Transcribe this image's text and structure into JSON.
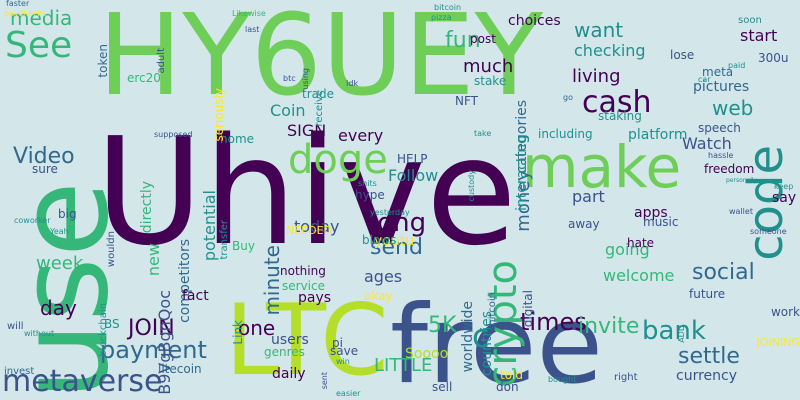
{
  "palette": {
    "background": "#d3e7ea",
    "dark_purple": "#440154",
    "indigo": "#3b528b",
    "blue": "#31688e",
    "teal": "#21908d",
    "sea_green": "#35b779",
    "green": "#6ece58",
    "lime": "#b5de2b",
    "yellow": "#fde725"
  },
  "words": [
    {
      "text": "Uhive",
      "color": "dark_purple",
      "rotate": 0
    },
    {
      "text": "HY6UEY",
      "color": "green",
      "rotate": 0
    },
    {
      "text": "use",
      "color": "sea_green",
      "rotate": -90
    },
    {
      "text": "free",
      "color": "indigo",
      "rotate": 0
    },
    {
      "text": "make",
      "color": "green",
      "rotate": 0
    },
    {
      "text": "LTC",
      "color": "lime",
      "rotate": 0
    },
    {
      "text": "code",
      "color": "teal",
      "rotate": -90
    },
    {
      "text": "metaverse",
      "color": "indigo",
      "rotate": 0
    },
    {
      "text": "doge",
      "color": "green",
      "rotate": 0
    },
    {
      "text": "crypto",
      "color": "sea_green",
      "rotate": -90
    },
    {
      "text": "See",
      "color": "sea_green",
      "rotate": 0
    },
    {
      "text": "cash",
      "color": "dark_purple",
      "rotate": 0
    },
    {
      "text": "payment",
      "color": "blue",
      "rotate": 0
    },
    {
      "text": "bank",
      "color": "teal",
      "rotate": 0
    },
    {
      "text": "Video",
      "color": "blue",
      "rotate": 0
    },
    {
      "text": "long",
      "color": "dark_purple",
      "rotate": 0
    },
    {
      "text": "send",
      "color": "blue",
      "rotate": 0
    },
    {
      "text": "social",
      "color": "blue",
      "rotate": 0
    },
    {
      "text": "JOIN",
      "color": "dark_purple",
      "rotate": 0
    },
    {
      "text": "times",
      "color": "dark_purple",
      "rotate": 0
    },
    {
      "text": "invite",
      "color": "sea_green",
      "rotate": 0
    },
    {
      "text": "settle",
      "color": "blue",
      "rotate": 0
    },
    {
      "text": "5K",
      "color": "sea_green",
      "rotate": 0
    },
    {
      "text": "LITTLE",
      "color": "sea_green",
      "rotate": 0
    },
    {
      "text": "fun",
      "color": "sea_green",
      "rotate": 0
    },
    {
      "text": "want",
      "color": "teal",
      "rotate": 0
    },
    {
      "text": "media",
      "color": "sea_green",
      "rotate": 0
    },
    {
      "text": "web",
      "color": "teal",
      "rotate": 0
    },
    {
      "text": "money",
      "color": "blue",
      "rotate": -90
    },
    {
      "text": "minute",
      "color": "blue",
      "rotate": -90
    },
    {
      "text": "one",
      "color": "dark_purple",
      "rotate": 0
    },
    {
      "text": "day",
      "color": "dark_purple",
      "rotate": 0
    },
    {
      "text": "week",
      "color": "sea_green",
      "rotate": 0
    },
    {
      "text": "new",
      "color": "sea_green",
      "rotate": -90
    },
    {
      "text": "potential",
      "color": "teal",
      "rotate": -90
    },
    {
      "text": "B9VgBgnQoc",
      "color": "indigo",
      "rotate": -90
    },
    {
      "text": "directly",
      "color": "sea_green",
      "rotate": -90
    },
    {
      "text": "competitors",
      "color": "blue",
      "rotate": -90
    },
    {
      "text": "categories",
      "color": "blue",
      "rotate": -90
    },
    {
      "text": "countries",
      "color": "teal",
      "rotate": -90
    },
    {
      "text": "worldwide",
      "color": "blue",
      "rotate": -90
    },
    {
      "text": "living",
      "color": "dark_purple",
      "rotate": 0
    },
    {
      "text": "much",
      "color": "dark_purple",
      "rotate": 0
    },
    {
      "text": "choices",
      "color": "dark_purple",
      "rotate": 0
    },
    {
      "text": "post",
      "color": "dark_purple",
      "rotate": 0
    },
    {
      "text": "start",
      "color": "dark_purple",
      "rotate": 0
    },
    {
      "text": "checking",
      "color": "teal",
      "rotate": 0
    },
    {
      "text": "Coin",
      "color": "teal",
      "rotate": 0
    },
    {
      "text": "SIGN",
      "color": "dark_purple",
      "rotate": 0
    },
    {
      "text": "every",
      "color": "dark_purple",
      "rotate": 0
    },
    {
      "text": "Follow",
      "color": "teal",
      "rotate": 0
    },
    {
      "text": "part",
      "color": "indigo",
      "rotate": 0
    },
    {
      "text": "Watch",
      "color": "indigo",
      "rotate": 0
    },
    {
      "text": "apps",
      "color": "dark_purple",
      "rotate": 0
    },
    {
      "text": "pictures",
      "color": "blue",
      "rotate": 0
    },
    {
      "text": "meta",
      "color": "blue",
      "rotate": 0
    },
    {
      "text": "300u",
      "color": "indigo",
      "rotate": 0
    },
    {
      "text": "interacting",
      "color": "teal",
      "rotate": -90
    },
    {
      "text": "platform",
      "color": "teal",
      "rotate": 0
    },
    {
      "text": "including",
      "color": "teal",
      "rotate": 0
    },
    {
      "text": "staking",
      "color": "teal",
      "rotate": 0
    },
    {
      "text": "NFT",
      "color": "indigo",
      "rotate": 0
    },
    {
      "text": "stake",
      "color": "teal",
      "rotate": 0
    },
    {
      "text": "trade",
      "color": "teal",
      "rotate": 0
    },
    {
      "text": "speech",
      "color": "indigo",
      "rotate": 0
    },
    {
      "text": "freedom",
      "color": "dark_purple",
      "rotate": 0
    },
    {
      "text": "say",
      "color": "dark_purple",
      "rotate": 0
    },
    {
      "text": "today",
      "color": "indigo",
      "rotate": 0
    },
    {
      "text": "youtu",
      "color": "yellow",
      "rotate": 0
    },
    {
      "text": "ages",
      "color": "indigo",
      "rotate": 0
    },
    {
      "text": "going",
      "color": "sea_green",
      "rotate": 0
    },
    {
      "text": "welcome",
      "color": "sea_green",
      "rotate": 0
    },
    {
      "text": "music",
      "color": "indigo",
      "rotate": 0
    },
    {
      "text": "hate",
      "color": "dark_purple",
      "rotate": 0
    },
    {
      "text": "future",
      "color": "indigo",
      "rotate": 0
    },
    {
      "text": "work",
      "color": "indigo",
      "rotate": 0
    },
    {
      "text": "daily",
      "color": "dark_purple",
      "rotate": 0
    },
    {
      "text": "users",
      "color": "indigo",
      "rotate": 0
    },
    {
      "text": "genres",
      "color": "sea_green",
      "rotate": 0
    },
    {
      "text": "pays",
      "color": "dark_purple",
      "rotate": 0
    },
    {
      "text": "Soooo",
      "color": "lime",
      "rotate": 0
    },
    {
      "text": "fact",
      "color": "dark_purple",
      "rotate": 0
    },
    {
      "text": "nothing",
      "color": "dark_purple",
      "rotate": 0
    },
    {
      "text": "service",
      "color": "sea_green",
      "rotate": 0
    },
    {
      "text": "NEEDED",
      "color": "yellow",
      "rotate": 0
    },
    {
      "text": "blows",
      "color": "teal",
      "rotate": 0
    },
    {
      "text": "away",
      "color": "indigo",
      "rotate": 0
    },
    {
      "text": "hype",
      "color": "indigo",
      "rotate": 0
    },
    {
      "text": "HELP",
      "color": "indigo",
      "rotate": 0
    },
    {
      "text": "home",
      "color": "teal",
      "rotate": 0
    },
    {
      "text": "sure",
      "color": "indigo",
      "rotate": 0
    },
    {
      "text": "big",
      "color": "indigo",
      "rotate": 0
    },
    {
      "text": "Buy",
      "color": "sea_green",
      "rotate": 0
    },
    {
      "text": "pi",
      "color": "indigo",
      "rotate": 0
    },
    {
      "text": "save",
      "color": "indigo",
      "rotate": 0
    },
    {
      "text": "okay",
      "color": "yellow",
      "rotate": 0
    },
    {
      "text": "currency",
      "color": "indigo",
      "rotate": 0
    },
    {
      "text": "JOINING",
      "color": "yellow",
      "rotate": 0
    },
    {
      "text": "BS",
      "color": "teal",
      "rotate": 0
    },
    {
      "text": "litecoin",
      "color": "blue",
      "rotate": 0
    },
    {
      "text": "sell",
      "color": "indigo",
      "rotate": 0
    },
    {
      "text": "don",
      "color": "indigo",
      "rotate": 0
    },
    {
      "text": "told",
      "color": "yellow",
      "rotate": 0
    },
    {
      "text": "invest",
      "color": "blue",
      "rotate": 0
    },
    {
      "text": "will",
      "color": "indigo",
      "rotate": 0
    },
    {
      "text": "without",
      "color": "teal",
      "rotate": 0
    },
    {
      "text": "coworker",
      "color": "teal",
      "rotate": 0
    },
    {
      "text": "Yeah",
      "color": "teal",
      "rotate": 0
    },
    {
      "text": "faster",
      "color": "blue",
      "rotate": 0
    },
    {
      "text": "paychecks",
      "color": "yellow",
      "rotate": 0
    },
    {
      "text": "token",
      "color": "blue",
      "rotate": -90
    },
    {
      "text": "adult",
      "color": "indigo",
      "rotate": -90
    },
    {
      "text": "erc20",
      "color": "sea_green",
      "rotate": 0
    },
    {
      "text": "Likewise",
      "color": "sea_green",
      "rotate": 0
    },
    {
      "text": "last",
      "color": "indigo",
      "rotate": 0
    },
    {
      "text": "seriously",
      "color": "yellow",
      "rotate": -90
    },
    {
      "text": "using",
      "color": "indigo",
      "rotate": -90
    },
    {
      "text": "receive",
      "color": "teal",
      "rotate": -90
    },
    {
      "text": "btc",
      "color": "indigo",
      "rotate": 0
    },
    {
      "text": "Idk",
      "color": "indigo",
      "rotate": 0
    },
    {
      "text": "bitcoin",
      "color": "teal",
      "rotate": 0
    },
    {
      "text": "pizza",
      "color": "teal",
      "rotate": 0
    },
    {
      "text": "lose",
      "color": "indigo",
      "rotate": 0
    },
    {
      "text": "soon",
      "color": "teal",
      "rotate": 0
    },
    {
      "text": "paid",
      "color": "teal",
      "rotate": 0
    },
    {
      "text": "car",
      "color": "teal",
      "rotate": 0
    },
    {
      "text": "go",
      "color": "blue",
      "rotate": 0
    },
    {
      "text": "supposed",
      "color": "indigo",
      "rotate": 0
    },
    {
      "text": "wouldn",
      "color": "indigo",
      "rotate": -90
    },
    {
      "text": "transfer",
      "color": "teal",
      "rotate": -90
    },
    {
      "text": "shits",
      "color": "teal",
      "rotate": 0
    },
    {
      "text": "yesterday",
      "color": "teal",
      "rotate": 0
    },
    {
      "text": "wallet",
      "color": "indigo",
      "rotate": 0
    },
    {
      "text": "someone",
      "color": "indigo",
      "rotate": 0
    },
    {
      "text": "hassle",
      "color": "indigo",
      "rotate": 0
    },
    {
      "text": "keep",
      "color": "teal",
      "rotate": 0
    },
    {
      "text": "take",
      "color": "teal",
      "rotate": 0
    },
    {
      "text": "custody",
      "color": "teal",
      "rotate": -90
    },
    {
      "text": "personally",
      "color": "teal",
      "rotate": 0
    },
    {
      "text": "blockchain",
      "color": "teal",
      "rotate": -90
    },
    {
      "text": "shitcoin",
      "color": "blue",
      "rotate": -90
    },
    {
      "text": "digital",
      "color": "indigo",
      "rotate": -90
    },
    {
      "text": "ADD",
      "color": "teal",
      "rotate": -90
    },
    {
      "text": "sent",
      "color": "indigo",
      "rotate": -90
    },
    {
      "text": "win",
      "color": "teal",
      "rotate": 0
    },
    {
      "text": "easier",
      "color": "teal",
      "rotate": 0
    },
    {
      "text": "bought",
      "color": "teal",
      "rotate": 0
    },
    {
      "text": "right",
      "color": "indigo",
      "rotate": 0
    },
    {
      "text": "Link",
      "color": "teal",
      "rotate": -90
    },
    {
      "text": "c",
      "color": "teal",
      "rotate": 0
    }
  ]
}
